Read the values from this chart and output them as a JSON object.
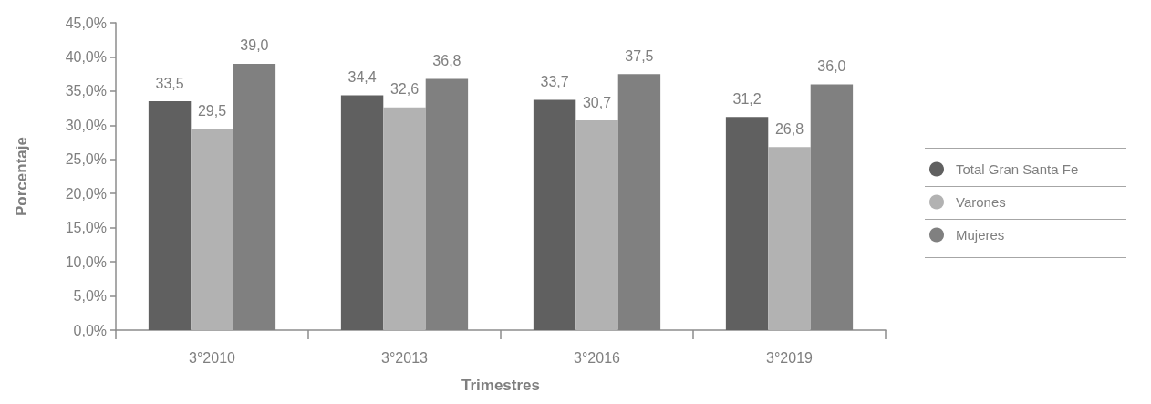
{
  "chart_data": {
    "type": "bar",
    "categories": [
      "3°2010",
      "3°2013",
      "3°2016",
      "3°2019"
    ],
    "series": [
      {
        "name": "Total Gran Santa Fe",
        "color": "#606060",
        "values": [
          33.5,
          34.4,
          33.7,
          31.2
        ],
        "value_labels": [
          "33,5",
          "34,4",
          "33,7",
          "31,2"
        ]
      },
      {
        "name": "Varones",
        "color": "#b2b2b2",
        "values": [
          29.5,
          32.6,
          30.7,
          26.8
        ],
        "value_labels": [
          "29,5",
          "32,6",
          "30,7",
          "26,8"
        ]
      },
      {
        "name": "Mujeres",
        "color": "#808080",
        "values": [
          39.0,
          36.8,
          37.5,
          36.0
        ],
        "value_labels": [
          "39,0",
          "36,8",
          "37,5",
          "36,0"
        ]
      }
    ],
    "xlabel": "Trimestres",
    "ylabel": "Porcentaje",
    "ylim": [
      0,
      45
    ],
    "yticks": [
      {
        "value": 0,
        "label": "0,0%"
      },
      {
        "value": 5,
        "label": "5,0%"
      },
      {
        "value": 10,
        "label": "10,0%"
      },
      {
        "value": 15,
        "label": "15,0%"
      },
      {
        "value": 20,
        "label": "20,0%"
      },
      {
        "value": 25,
        "label": "25,0%"
      },
      {
        "value": 30,
        "label": "30,0%"
      },
      {
        "value": 35,
        "label": "35,0%"
      },
      {
        "value": 40,
        "label": "40,0%"
      },
      {
        "value": 45,
        "label": "45,0%"
      }
    ],
    "grid": false,
    "legend": "right"
  }
}
